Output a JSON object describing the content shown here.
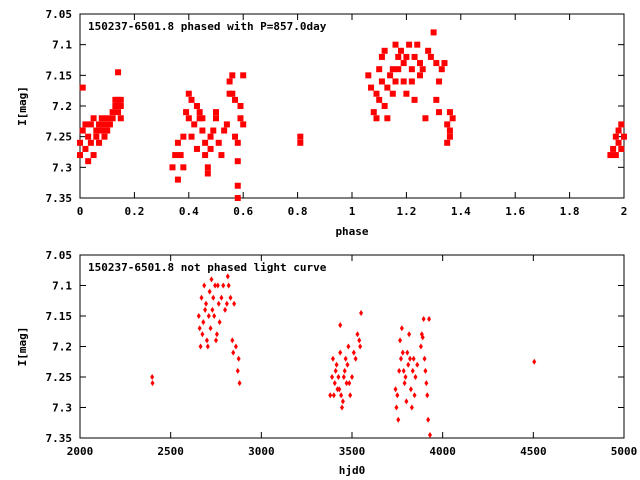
{
  "chart_data": [
    {
      "type": "scatter",
      "title": "150237-6501.8 phased with P=857.0day",
      "xlabel": "phase",
      "ylabel": "I[mag]",
      "xlim": [
        0,
        2
      ],
      "ylim": [
        7.35,
        7.05
      ],
      "y_inverted": true,
      "xticks": [
        "0",
        "0.2",
        "0.4",
        "0.6",
        "0.8",
        "1",
        "1.2",
        "1.4",
        "1.6",
        "1.8",
        "2"
      ],
      "yticks": [
        "7.05",
        "7.1",
        "7.15",
        "7.2",
        "7.25",
        "7.3",
        "7.35"
      ],
      "marker_color": "#ff0000",
      "marker": "filled-square",
      "grid": false,
      "series": [
        {
          "points": [
            [
              0.0,
              7.26
            ],
            [
              0.0,
              7.28
            ],
            [
              0.01,
              7.24
            ],
            [
              0.01,
              7.17
            ],
            [
              0.02,
              7.23
            ],
            [
              0.02,
              7.27
            ],
            [
              0.03,
              7.25
            ],
            [
              0.03,
              7.29
            ],
            [
              0.04,
              7.26
            ],
            [
              0.04,
              7.23
            ],
            [
              0.05,
              7.28
            ],
            [
              0.05,
              7.22
            ],
            [
              0.06,
              7.25
            ],
            [
              0.06,
              7.24
            ],
            [
              0.07,
              7.26
            ],
            [
              0.07,
              7.23
            ],
            [
              0.08,
              7.22
            ],
            [
              0.08,
              7.24
            ],
            [
              0.09,
              7.25
            ],
            [
              0.09,
              7.23
            ],
            [
              0.1,
              7.24
            ],
            [
              0.1,
              7.22
            ],
            [
              0.11,
              7.23
            ],
            [
              0.12,
              7.21
            ],
            [
              0.12,
              7.22
            ],
            [
              0.13,
              7.2
            ],
            [
              0.13,
              7.19
            ],
            [
              0.14,
              7.21
            ],
            [
              0.14,
              7.19
            ],
            [
              0.14,
              7.145
            ],
            [
              0.15,
              7.2
            ],
            [
              0.15,
              7.19
            ],
            [
              0.15,
              7.22
            ],
            [
              0.34,
              7.3
            ],
            [
              0.35,
              7.28
            ],
            [
              0.36,
              7.26
            ],
            [
              0.36,
              7.32
            ],
            [
              0.37,
              7.28
            ],
            [
              0.38,
              7.25
            ],
            [
              0.38,
              7.3
            ],
            [
              0.39,
              7.21
            ],
            [
              0.4,
              7.22
            ],
            [
              0.4,
              7.18
            ],
            [
              0.41,
              7.19
            ],
            [
              0.41,
              7.25
            ],
            [
              0.42,
              7.23
            ],
            [
              0.43,
              7.27
            ],
            [
              0.43,
              7.2
            ],
            [
              0.44,
              7.21
            ],
            [
              0.44,
              7.22
            ],
            [
              0.45,
              7.22
            ],
            [
              0.45,
              7.24
            ],
            [
              0.46,
              7.26
            ],
            [
              0.46,
              7.28
            ],
            [
              0.47,
              7.3
            ],
            [
              0.47,
              7.31
            ],
            [
              0.48,
              7.25
            ],
            [
              0.48,
              7.27
            ],
            [
              0.49,
              7.24
            ],
            [
              0.5,
              7.21
            ],
            [
              0.5,
              7.22
            ],
            [
              0.51,
              7.26
            ],
            [
              0.52,
              7.28
            ],
            [
              0.53,
              7.24
            ],
            [
              0.54,
              7.23
            ],
            [
              0.55,
              7.18
            ],
            [
              0.55,
              7.16
            ],
            [
              0.56,
              7.15
            ],
            [
              0.56,
              7.18
            ],
            [
              0.57,
              7.19
            ],
            [
              0.57,
              7.25
            ],
            [
              0.58,
              7.26
            ],
            [
              0.58,
              7.29
            ],
            [
              0.58,
              7.33
            ],
            [
              0.59,
              7.22
            ],
            [
              0.59,
              7.2
            ],
            [
              0.6,
              7.15
            ],
            [
              0.6,
              7.23
            ],
            [
              0.58,
              7.35
            ],
            [
              0.81,
              7.25
            ],
            [
              0.81,
              7.26
            ],
            [
              1.06,
              7.15
            ],
            [
              1.07,
              7.17
            ],
            [
              1.08,
              7.21
            ],
            [
              1.09,
              7.18
            ],
            [
              1.09,
              7.22
            ],
            [
              1.1,
              7.14
            ],
            [
              1.1,
              7.19
            ],
            [
              1.11,
              7.12
            ],
            [
              1.11,
              7.16
            ],
            [
              1.12,
              7.11
            ],
            [
              1.12,
              7.2
            ],
            [
              1.13,
              7.17
            ],
            [
              1.13,
              7.22
            ],
            [
              1.14,
              7.15
            ],
            [
              1.15,
              7.14
            ],
            [
              1.15,
              7.18
            ],
            [
              1.16,
              7.1
            ],
            [
              1.16,
              7.16
            ],
            [
              1.17,
              7.12
            ],
            [
              1.17,
              7.14
            ],
            [
              1.18,
              7.11
            ],
            [
              1.19,
              7.13
            ],
            [
              1.19,
              7.16
            ],
            [
              1.2,
              7.12
            ],
            [
              1.2,
              7.18
            ],
            [
              1.21,
              7.1
            ],
            [
              1.22,
              7.14
            ],
            [
              1.22,
              7.16
            ],
            [
              1.23,
              7.12
            ],
            [
              1.23,
              7.19
            ],
            [
              1.24,
              7.1
            ],
            [
              1.25,
              7.13
            ],
            [
              1.25,
              7.15
            ],
            [
              1.26,
              7.14
            ],
            [
              1.27,
              7.22
            ],
            [
              1.28,
              7.11
            ],
            [
              1.29,
              7.12
            ],
            [
              1.3,
              7.08
            ],
            [
              1.31,
              7.13
            ],
            [
              1.31,
              7.19
            ],
            [
              1.32,
              7.16
            ],
            [
              1.32,
              7.21
            ],
            [
              1.33,
              7.14
            ],
            [
              1.34,
              7.13
            ],
            [
              1.35,
              7.23
            ],
            [
              1.36,
              7.24
            ],
            [
              1.36,
              7.25
            ],
            [
              1.37,
              7.22
            ],
            [
              1.35,
              7.26
            ],
            [
              1.36,
              7.21
            ],
            [
              1.95,
              7.28
            ],
            [
              1.96,
              7.27
            ],
            [
              1.97,
              7.25
            ],
            [
              1.97,
              7.28
            ],
            [
              1.98,
              7.24
            ],
            [
              1.98,
              7.26
            ],
            [
              1.99,
              7.23
            ],
            [
              1.99,
              7.27
            ],
            [
              2.0,
              7.25
            ]
          ]
        }
      ]
    },
    {
      "type": "scatter",
      "title": "150237-6501.8 not phased light curve",
      "xlabel": "hjd0",
      "ylabel": "I[mag]",
      "xlim": [
        2000,
        5000
      ],
      "ylim": [
        7.35,
        7.05
      ],
      "y_inverted": true,
      "xticks": [
        "2000",
        "2500",
        "3000",
        "3500",
        "4000",
        "4500",
        "5000"
      ],
      "yticks": [
        "7.05",
        "7.1",
        "7.15",
        "7.2",
        "7.25",
        "7.3",
        "7.35"
      ],
      "marker_color": "#ff0000",
      "marker": "filled-diamond",
      "grid": false,
      "series": [
        {
          "points": [
            [
              2398,
              7.25
            ],
            [
              2400,
              7.26
            ],
            [
              2655,
              7.15
            ],
            [
              2660,
              7.17
            ],
            [
              2665,
              7.2
            ],
            [
              2670,
              7.12
            ],
            [
              2675,
              7.18
            ],
            [
              2680,
              7.16
            ],
            [
              2685,
              7.1
            ],
            [
              2690,
              7.14
            ],
            [
              2695,
              7.13
            ],
            [
              2700,
              7.19
            ],
            [
              2705,
              7.2
            ],
            [
              2710,
              7.15
            ],
            [
              2715,
              7.11
            ],
            [
              2720,
              7.17
            ],
            [
              2725,
              7.09
            ],
            [
              2730,
              7.14
            ],
            [
              2735,
              7.12
            ],
            [
              2740,
              7.15
            ],
            [
              2745,
              7.1
            ],
            [
              2750,
              7.19
            ],
            [
              2755,
              7.18
            ],
            [
              2760,
              7.1
            ],
            [
              2765,
              7.13
            ],
            [
              2770,
              7.16
            ],
            [
              2780,
              7.12
            ],
            [
              2790,
              7.1
            ],
            [
              2800,
              7.14
            ],
            [
              2810,
              7.13
            ],
            [
              2815,
              7.085
            ],
            [
              2820,
              7.1
            ],
            [
              2830,
              7.12
            ],
            [
              2840,
              7.19
            ],
            [
              2850,
              7.13
            ],
            [
              2860,
              7.2
            ],
            [
              2870,
              7.24
            ],
            [
              2880,
              7.26
            ],
            [
              2875,
              7.22
            ],
            [
              2845,
              7.21
            ],
            [
              3380,
              7.28
            ],
            [
              3390,
              7.25
            ],
            [
              3395,
              7.22
            ],
            [
              3400,
              7.28
            ],
            [
              3405,
              7.26
            ],
            [
              3410,
              7.24
            ],
            [
              3415,
              7.23
            ],
            [
              3420,
              7.27
            ],
            [
              3425,
              7.25
            ],
            [
              3430,
              7.27
            ],
            [
              3435,
              7.21
            ],
            [
              3440,
              7.28
            ],
            [
              3445,
              7.3
            ],
            [
              3450,
              7.29
            ],
            [
              3455,
              7.25
            ],
            [
              3460,
              7.24
            ],
            [
              3465,
              7.22
            ],
            [
              3470,
              7.26
            ],
            [
              3475,
              7.23
            ],
            [
              3480,
              7.2
            ],
            [
              3485,
              7.26
            ],
            [
              3490,
              7.28
            ],
            [
              3500,
              7.25
            ],
            [
              3510,
              7.21
            ],
            [
              3520,
              7.22
            ],
            [
              3530,
              7.18
            ],
            [
              3540,
              7.19
            ],
            [
              3545,
              7.2
            ],
            [
              3550,
              7.145
            ],
            [
              3435,
              7.165
            ],
            [
              3740,
              7.27
            ],
            [
              3745,
              7.3
            ],
            [
              3750,
              7.28
            ],
            [
              3755,
              7.32
            ],
            [
              3760,
              7.24
            ],
            [
              3765,
              7.19
            ],
            [
              3770,
              7.22
            ],
            [
              3775,
              7.17
            ],
            [
              3780,
              7.21
            ],
            [
              3785,
              7.24
            ],
            [
              3790,
              7.26
            ],
            [
              3795,
              7.25
            ],
            [
              3800,
              7.29
            ],
            [
              3805,
              7.21
            ],
            [
              3810,
              7.23
            ],
            [
              3815,
              7.18
            ],
            [
              3820,
              7.22
            ],
            [
              3825,
              7.27
            ],
            [
              3830,
              7.3
            ],
            [
              3835,
              7.24
            ],
            [
              3840,
              7.22
            ],
            [
              3845,
              7.28
            ],
            [
              3850,
              7.25
            ],
            [
              3860,
              7.23
            ],
            [
              3880,
              7.2
            ],
            [
              3885,
              7.18
            ],
            [
              3890,
              7.185
            ],
            [
              3895,
              7.155
            ],
            [
              3900,
              7.22
            ],
            [
              3905,
              7.24
            ],
            [
              3910,
              7.26
            ],
            [
              3915,
              7.28
            ],
            [
              3920,
              7.32
            ],
            [
              3925,
              7.155
            ],
            [
              3930,
              7.345
            ],
            [
              4505,
              7.225
            ]
          ]
        }
      ]
    }
  ]
}
